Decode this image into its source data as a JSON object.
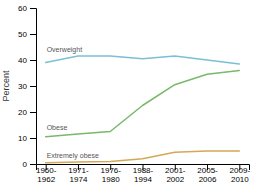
{
  "chart_data": {
    "type": "line",
    "categories": [
      "1960-\n1962",
      "1971-\n1974",
      "1976-\n1980",
      "1988-\n1994",
      "2001-\n2002",
      "2005-\n2006",
      "2009-\n2010"
    ],
    "series": [
      {
        "name": "Overweight",
        "color": "#7bbfd6",
        "values": [
          39.0,
          41.5,
          41.5,
          40.5,
          41.5,
          40.0,
          38.5
        ]
      },
      {
        "name": "Obese",
        "color": "#7ab86a",
        "values": [
          10.5,
          11.5,
          12.5,
          22.5,
          30.5,
          34.5,
          36.0
        ]
      },
      {
        "name": "Extremely obese",
        "color": "#d4a855",
        "values": [
          0.5,
          0.8,
          1.0,
          2.0,
          4.5,
          5.0,
          5.0
        ]
      }
    ],
    "y_label": "Percent",
    "ylim": [
      0,
      60
    ],
    "yticks": [
      0,
      10,
      20,
      30,
      40,
      50,
      60
    ],
    "grid": false
  }
}
